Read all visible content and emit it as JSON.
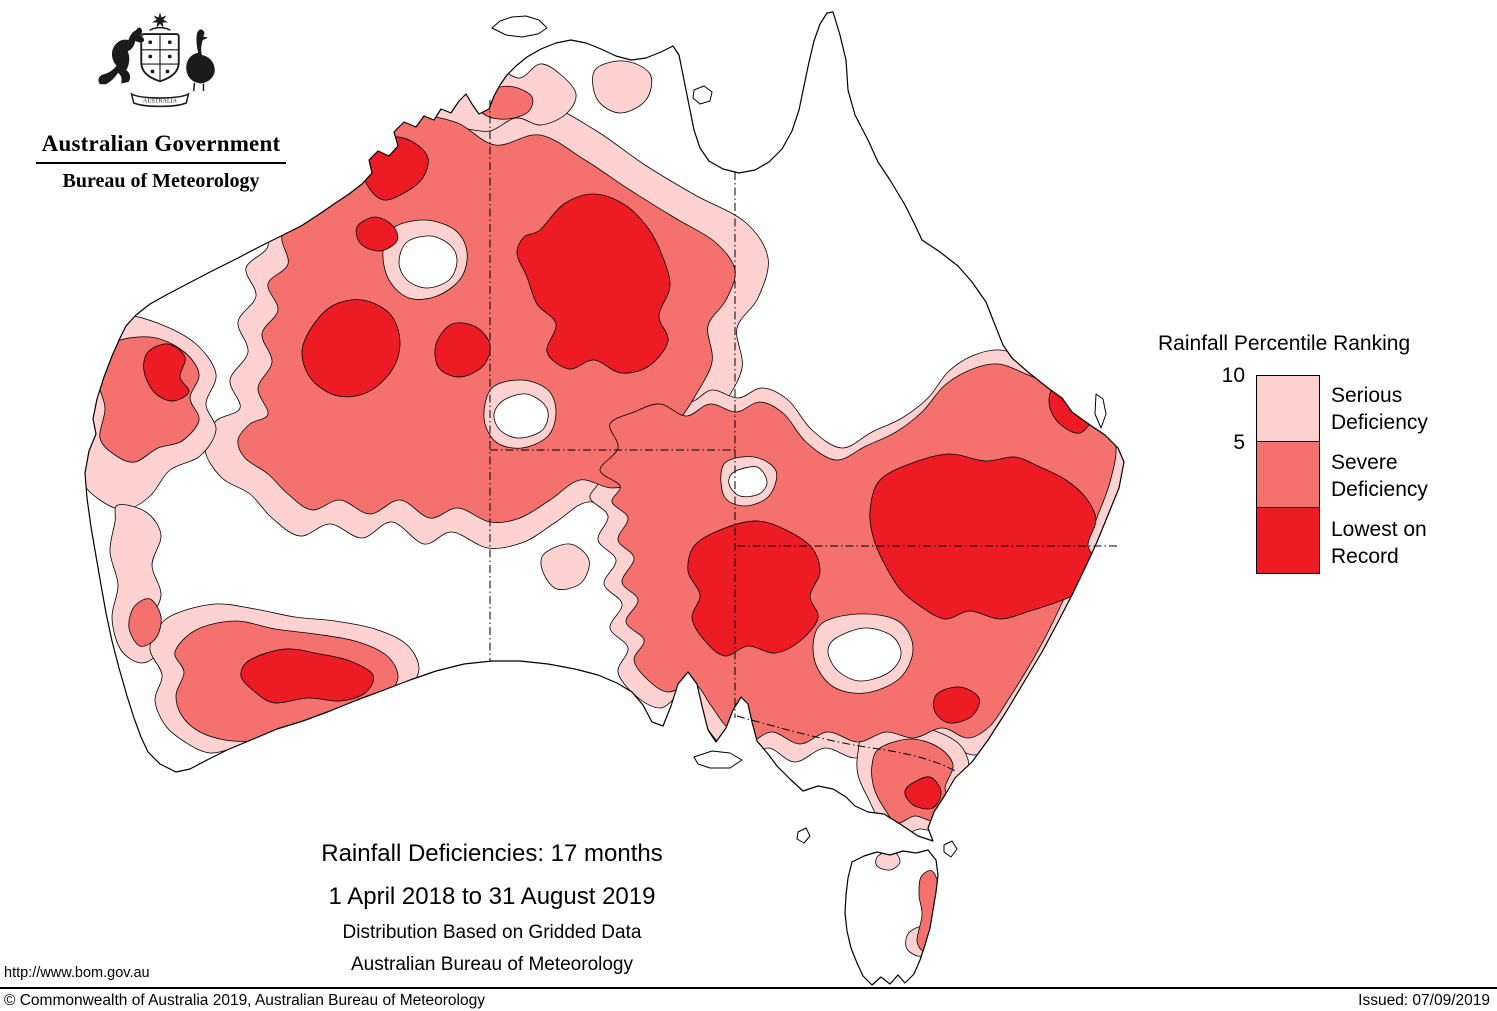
{
  "header": {
    "government": "Australian Government",
    "bureau": "Bureau of Meteorology",
    "scroll": "AUSTRALIA"
  },
  "legend": {
    "title": "Rainfall Percentile Ranking",
    "tick_top": "10",
    "tick_mid": "5",
    "items": [
      {
        "label_line1": "Serious",
        "label_line2": "Deficiency",
        "color": "#FFD2D2"
      },
      {
        "label_line1": "Severe",
        "label_line2": "Deficiency",
        "color": "#F4716E"
      },
      {
        "label_line1": "Lowest on",
        "label_line2": "Record",
        "color": "#ED1C24"
      }
    ]
  },
  "caption": {
    "line1": "Rainfall Deficiencies: 17 months",
    "line2": "1 April 2018 to 31 August 2019",
    "line3": "Distribution Based on Gridded Data",
    "line4": "Australian Bureau of Meteorology"
  },
  "footer": {
    "url": "http://www.bom.gov.au",
    "copyright": "© Commonwealth of Australia 2019, Australian Bureau of Meteorology",
    "issued": "Issued: 07/09/2019"
  },
  "map": {
    "title": "Rainfall deficiency map of Australia",
    "colors": {
      "serious": "#FFD2D2",
      "severe": "#F4716E",
      "lowest": "#ED1C24",
      "coastline": "#000000",
      "ocean": "#FFFFFF"
    }
  }
}
